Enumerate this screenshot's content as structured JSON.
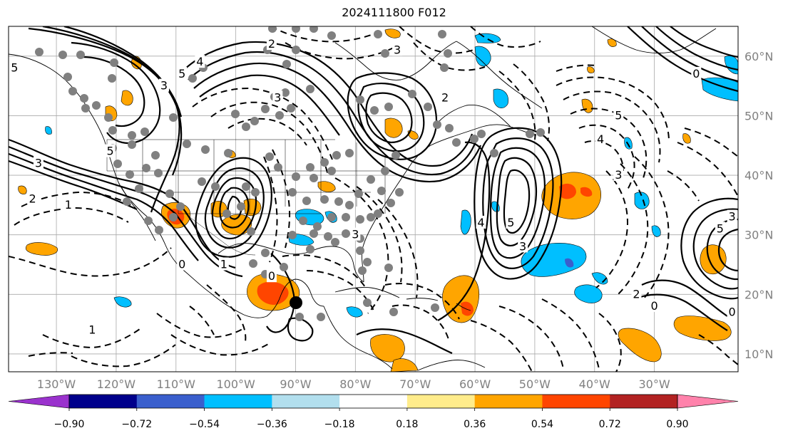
{
  "title": "2024111800 F012",
  "map": {
    "projection": "cylindrical",
    "lon_range": [
      -138,
      -16
    ],
    "lat_range": [
      7,
      65
    ],
    "lon_ticks": [
      {
        "value": -130,
        "label": "130°W"
      },
      {
        "value": -120,
        "label": "120°W"
      },
      {
        "value": -110,
        "label": "110°W"
      },
      {
        "value": -100,
        "label": "100°W"
      },
      {
        "value": -90,
        "label": "90°W"
      },
      {
        "value": -80,
        "label": "80°W"
      },
      {
        "value": -70,
        "label": "70°W"
      },
      {
        "value": -60,
        "label": "60°W"
      },
      {
        "value": -50,
        "label": "50°W"
      },
      {
        "value": -40,
        "label": "40°W"
      },
      {
        "value": -30,
        "label": "30°W"
      }
    ],
    "lat_ticks": [
      {
        "value": 60,
        "label": "60°N"
      },
      {
        "value": 50,
        "label": "50°N"
      },
      {
        "value": 40,
        "label": "40°N"
      },
      {
        "value": 30,
        "label": "30°N"
      },
      {
        "value": 20,
        "label": "20°N"
      },
      {
        "value": 10,
        "label": "10°N"
      }
    ],
    "grid": true,
    "tick_label_color": "#808080",
    "contour_color": "#000000",
    "dot_color": "#808080",
    "contour_labels": [
      {
        "lon": -106,
        "lat": 59,
        "text": "4"
      },
      {
        "lon": -94,
        "lat": 62,
        "text": "2"
      },
      {
        "lon": -73,
        "lat": 61,
        "text": "3"
      },
      {
        "lon": -109,
        "lat": 57,
        "text": "5"
      },
      {
        "lon": -112,
        "lat": 55,
        "text": "3"
      },
      {
        "lon": -121,
        "lat": 44,
        "text": "5"
      },
      {
        "lon": -133,
        "lat": 42,
        "text": "3"
      },
      {
        "lon": -134,
        "lat": 36,
        "text": "2"
      },
      {
        "lon": -128,
        "lat": 35,
        "text": "1"
      },
      {
        "lon": -124,
        "lat": 14,
        "text": "1"
      },
      {
        "lon": -137,
        "lat": 58,
        "text": "5"
      },
      {
        "lon": -65,
        "lat": 53,
        "text": "2"
      },
      {
        "lon": -36,
        "lat": 50,
        "text": "5"
      },
      {
        "lon": -39,
        "lat": 46,
        "text": "4"
      },
      {
        "lon": -36,
        "lat": 40,
        "text": "3"
      },
      {
        "lon": -54,
        "lat": 32,
        "text": "5"
      },
      {
        "lon": -59,
        "lat": 32,
        "text": "4"
      },
      {
        "lon": -52,
        "lat": 28,
        "text": "3"
      },
      {
        "lon": -33,
        "lat": 20,
        "text": "2"
      },
      {
        "lon": -30,
        "lat": 18,
        "text": "0"
      },
      {
        "lon": -17,
        "lat": 33,
        "text": "3"
      },
      {
        "lon": -19,
        "lat": 31,
        "text": "5"
      },
      {
        "lon": -23,
        "lat": 57,
        "text": "0"
      },
      {
        "lon": -94,
        "lat": 23,
        "text": "0"
      },
      {
        "lon": -109,
        "lat": 25,
        "text": "0"
      },
      {
        "lon": -102,
        "lat": 25,
        "text": "1"
      },
      {
        "lon": -80,
        "lat": 30,
        "text": "3"
      },
      {
        "lon": -93,
        "lat": 53,
        "text": "3"
      },
      {
        "lon": -17,
        "lat": 17,
        "text": "0"
      }
    ]
  },
  "colorbar": {
    "ticks": [
      "−0.90",
      "−0.72",
      "−0.54",
      "−0.36",
      "−0.18",
      "0.18",
      "0.36",
      "0.54",
      "0.72",
      "0.90"
    ],
    "colors": [
      "#9a32cd",
      "#00008b",
      "#3a5fcd",
      "#00bfff",
      "#b2dfee",
      "#ffffff",
      "#ffec8b",
      "#ffa500",
      "#ff4500",
      "#b22222",
      "#ff82ab"
    ],
    "extend": "both"
  }
}
